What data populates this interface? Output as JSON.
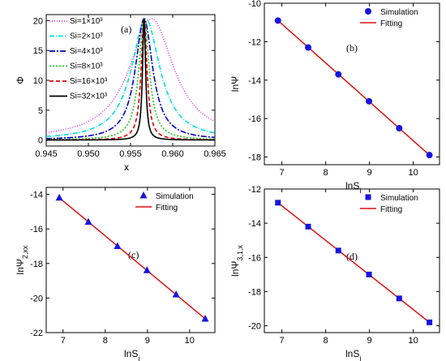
{
  "chart_data": [
    {
      "type": "line",
      "tag": "(a)",
      "xlabel": "x",
      "ylabel": "Φ",
      "xlim": [
        0.945,
        0.965
      ],
      "ylim": [
        -1,
        21
      ],
      "xticks": [
        "0.945",
        "0.950",
        "0.955",
        "0.960",
        "0.965"
      ],
      "yticks": [
        "0",
        "5",
        "10",
        "15",
        "20"
      ],
      "legend_placement": "top-left",
      "series": [
        {
          "name": "Si=1×10³",
          "color": "#e03ce0",
          "dash": "1,2",
          "center": 0.9575,
          "peak": 20.3,
          "width": 0.0032
        },
        {
          "name": "Si=2×10³",
          "color": "#00e0e0",
          "dash": "6,2,1,2",
          "center": 0.9568,
          "peak": 20.3,
          "width": 0.00205
        },
        {
          "name": "Si=4×10³",
          "color": "#0000c8",
          "dash": "7,2,2,2",
          "center": 0.9566,
          "peak": 20.3,
          "width": 0.00125
        },
        {
          "name": "Si=8×10³",
          "color": "#22c822",
          "dash": "2,2",
          "center": 0.9566,
          "peak": 20.3,
          "width": 0.00075
        },
        {
          "name": "Si=16×10³",
          "color": "#e00000",
          "dash": "5,3",
          "center": 0.9566,
          "peak": 20.3,
          "width": 0.00042
        },
        {
          "name": "Si=32×10³",
          "color": "#000000",
          "dash": "",
          "center": 0.9566,
          "peak": 20.3,
          "width": 0.00022
        }
      ]
    },
    {
      "type": "scatter",
      "tag": "(b)",
      "xlabel": "lnSi",
      "ylabel": "lnΨ",
      "xlim": [
        6.6,
        10.6
      ],
      "ylim": [
        -18.4,
        -10
      ],
      "xticks": [
        "7",
        "8",
        "9",
        "10"
      ],
      "yticks": [
        "-10",
        "-12",
        "-14",
        "-16",
        "-18"
      ],
      "marker": "circle",
      "legend_placement": "top-right",
      "series": [
        {
          "name": "Simulation",
          "x": [
            6.91,
            7.6,
            8.29,
            8.99,
            9.68,
            10.37
          ],
          "y": [
            -10.9,
            -12.3,
            -13.7,
            -15.1,
            -16.5,
            -17.9
          ]
        },
        {
          "name": "Fitting",
          "x": [
            6.91,
            10.37
          ],
          "y": [
            -10.9,
            -17.9
          ]
        }
      ]
    },
    {
      "type": "scatter",
      "tag": "(c)",
      "xlabel": "lnSi",
      "ylabel": "lnΨ2,xx",
      "xlim": [
        6.6,
        10.6
      ],
      "ylim": [
        -22,
        -13.6
      ],
      "xticks": [
        "7",
        "8",
        "9",
        "10"
      ],
      "yticks": [
        "-14",
        "-16",
        "-18",
        "-20",
        "-22"
      ],
      "marker": "triangle",
      "legend_placement": "top-right",
      "series": [
        {
          "name": "Simulation",
          "x": [
            6.91,
            7.6,
            8.29,
            8.99,
            9.68,
            10.37
          ],
          "y": [
            -14.2,
            -15.6,
            -17.0,
            -18.4,
            -19.8,
            -21.2
          ]
        },
        {
          "name": "Fitting",
          "x": [
            6.91,
            10.37
          ],
          "y": [
            -14.2,
            -21.2
          ]
        }
      ]
    },
    {
      "type": "scatter",
      "tag": "(d)",
      "xlabel": "lnSi",
      "ylabel": "lnΨ3,1,x",
      "xlim": [
        6.6,
        10.6
      ],
      "ylim": [
        -20.4,
        -12
      ],
      "xticks": [
        "7",
        "8",
        "9",
        "10"
      ],
      "yticks": [
        "-12",
        "-14",
        "-16",
        "-18",
        "-20"
      ],
      "marker": "square",
      "legend_placement": "top-right",
      "series": [
        {
          "name": "Simulation",
          "x": [
            6.91,
            7.6,
            8.29,
            8.99,
            9.68,
            10.37
          ],
          "y": [
            -12.8,
            -14.2,
            -15.6,
            -17.0,
            -18.4,
            -19.8
          ]
        },
        {
          "name": "Fitting",
          "x": [
            6.91,
            10.37
          ],
          "y": [
            -12.8,
            -19.8
          ]
        }
      ]
    }
  ],
  "colors": {
    "marker": "#1515e0",
    "fit": "#e01010"
  }
}
